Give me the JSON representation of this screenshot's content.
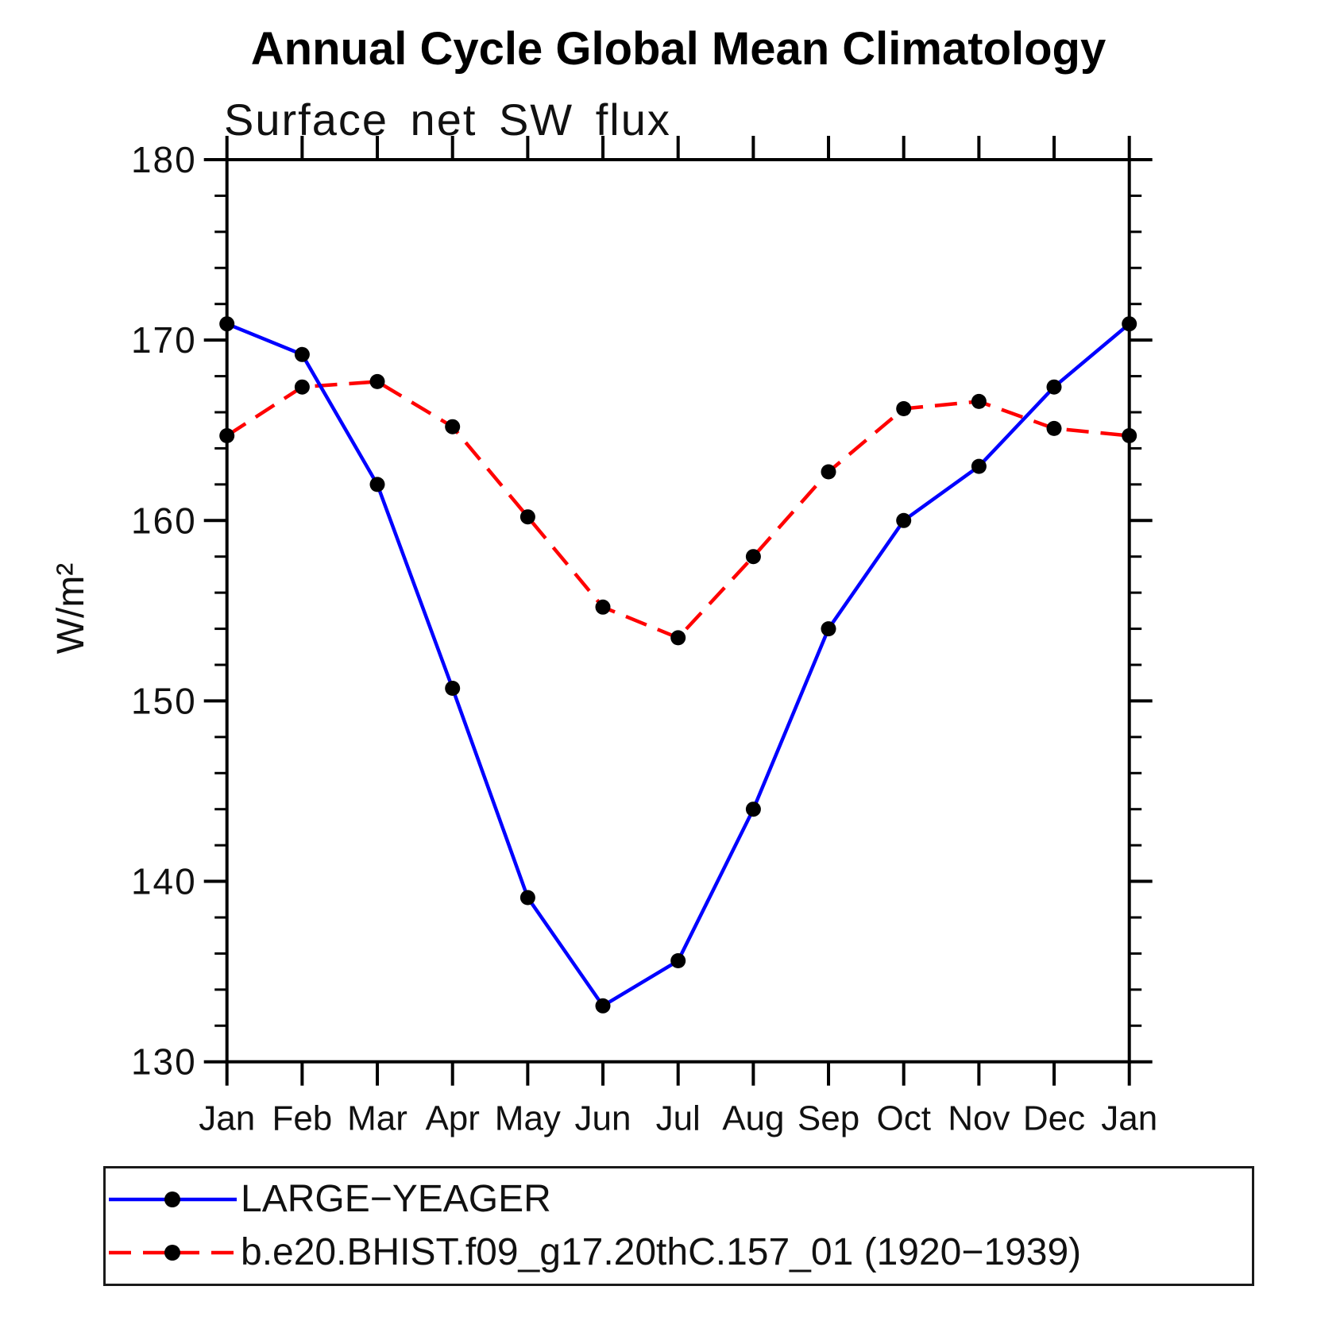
{
  "chart_data": {
    "type": "line",
    "title": "Annual Cycle Global Mean Climatology",
    "subtitle": "Surface net SW flux",
    "ylabel": "W/m²",
    "x_categories": [
      "Jan",
      "Feb",
      "Mar",
      "Apr",
      "May",
      "Jun",
      "Jul",
      "Aug",
      "Sep",
      "Oct",
      "Nov",
      "Dec",
      "Jan"
    ],
    "ylim": [
      130,
      180
    ],
    "yticks": [
      130,
      140,
      150,
      160,
      170,
      180
    ],
    "y_minor_step": 2,
    "grid": false,
    "legend_position": "bottom",
    "frame_color": "#000000",
    "background_color": "#ffffff",
    "series": [
      {
        "name": "LARGE−YEAGER",
        "color": "#0000ff",
        "style": "solid",
        "marker": "circle",
        "marker_color": "#000000",
        "values": [
          170.9,
          169.2,
          162.0,
          150.7,
          139.1,
          133.1,
          135.6,
          144.0,
          154.0,
          160.0,
          163.0,
          167.4,
          170.9
        ]
      },
      {
        "name": "b.e20.BHIST.f09_g17.20thC.157_01 (1920−1939)",
        "color": "#ff0000",
        "style": "dashed",
        "marker": "circle",
        "marker_color": "#000000",
        "values": [
          164.7,
          167.4,
          167.7,
          165.2,
          160.2,
          155.2,
          153.5,
          158.0,
          162.7,
          166.2,
          166.6,
          165.1,
          164.7
        ]
      }
    ]
  }
}
